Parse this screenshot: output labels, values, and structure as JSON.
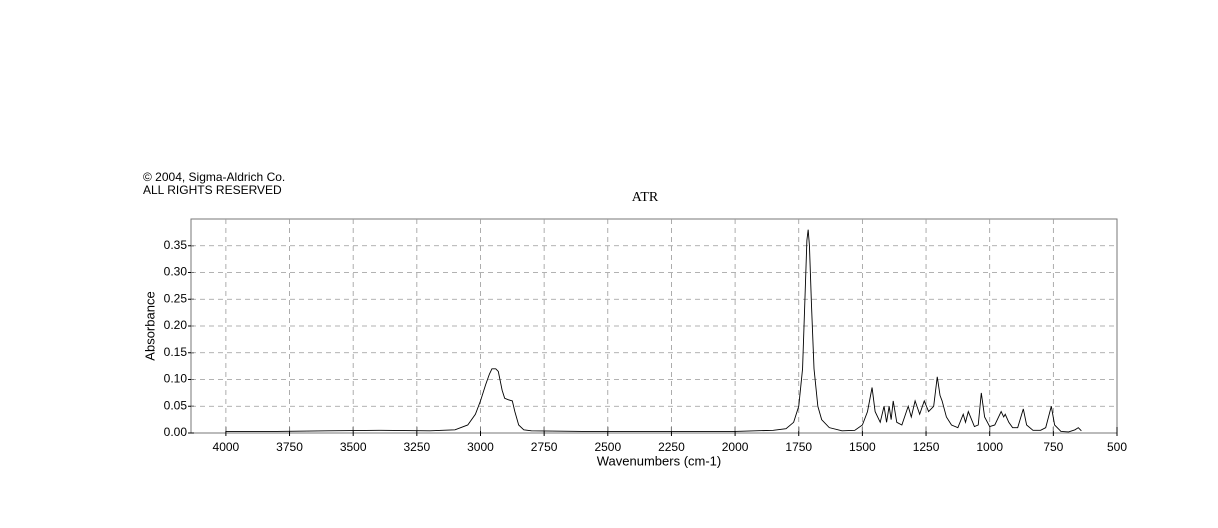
{
  "chart_data": {
    "type": "line",
    "title": "ATR",
    "annotations": [
      "© 2004, Sigma-Aldrich Co.",
      "ALL RIGHTS RESERVED"
    ],
    "x_label": "Wavenumbers (cm-1)",
    "y_label": "Absorbance",
    "x": [
      4000,
      3800,
      3600,
      3400,
      3200,
      3100,
      3050,
      3020,
      3000,
      2980,
      2965,
      2955,
      2940,
      2930,
      2915,
      2905,
      2890,
      2875,
      2865,
      2850,
      2830,
      2800,
      2600,
      2400,
      2200,
      2000,
      1850,
      1800,
      1770,
      1750,
      1735,
      1725,
      1718,
      1713,
      1708,
      1700,
      1690,
      1675,
      1660,
      1630,
      1580,
      1530,
      1500,
      1480,
      1462,
      1450,
      1430,
      1415,
      1405,
      1395,
      1387,
      1379,
      1365,
      1345,
      1320,
      1308,
      1293,
      1275,
      1257,
      1240,
      1220,
      1206,
      1195,
      1187,
      1170,
      1150,
      1125,
      1104,
      1095,
      1084,
      1060,
      1045,
      1033,
      1020,
      1000,
      980,
      955,
      945,
      939,
      925,
      910,
      890,
      868,
      855,
      830,
      800,
      780,
      758,
      745,
      720,
      690,
      665,
      652,
      640
    ],
    "values": [
      0.003,
      0.003,
      0.004,
      0.005,
      0.004,
      0.006,
      0.015,
      0.035,
      0.06,
      0.09,
      0.11,
      0.12,
      0.12,
      0.115,
      0.08,
      0.065,
      0.062,
      0.06,
      0.04,
      0.015,
      0.006,
      0.004,
      0.003,
      0.003,
      0.003,
      0.003,
      0.005,
      0.008,
      0.02,
      0.05,
      0.12,
      0.26,
      0.36,
      0.38,
      0.35,
      0.24,
      0.12,
      0.05,
      0.025,
      0.01,
      0.004,
      0.005,
      0.015,
      0.04,
      0.085,
      0.04,
      0.02,
      0.05,
      0.02,
      0.05,
      0.025,
      0.06,
      0.02,
      0.015,
      0.05,
      0.03,
      0.06,
      0.035,
      0.06,
      0.04,
      0.05,
      0.105,
      0.07,
      0.06,
      0.03,
      0.015,
      0.01,
      0.035,
      0.02,
      0.04,
      0.012,
      0.015,
      0.075,
      0.03,
      0.012,
      0.015,
      0.04,
      0.03,
      0.035,
      0.02,
      0.01,
      0.01,
      0.045,
      0.015,
      0.005,
      0.005,
      0.01,
      0.05,
      0.015,
      0.003,
      0.002,
      0.006,
      0.01,
      0.004
    ],
    "color": "#000000",
    "xlim": [
      4137,
      500
    ],
    "ylim": [
      0,
      0.4
    ],
    "xticks": [
      4000,
      3750,
      3500,
      3250,
      3000,
      2750,
      2500,
      2250,
      2000,
      1750,
      1500,
      1250,
      1000,
      750,
      500
    ],
    "yticks": [
      {
        "value": 0,
        "label": "0.00"
      },
      {
        "value": 0.05,
        "label": "0.05"
      },
      {
        "value": 0.1,
        "label": "0.10"
      },
      {
        "value": 0.15,
        "label": "0.15"
      },
      {
        "value": 0.2,
        "label": "0.20"
      },
      {
        "value": 0.25,
        "label": "0.25"
      },
      {
        "value": 0.3,
        "label": "0.30"
      },
      {
        "value": 0.35,
        "label": "0.35"
      }
    ],
    "grid": true
  }
}
